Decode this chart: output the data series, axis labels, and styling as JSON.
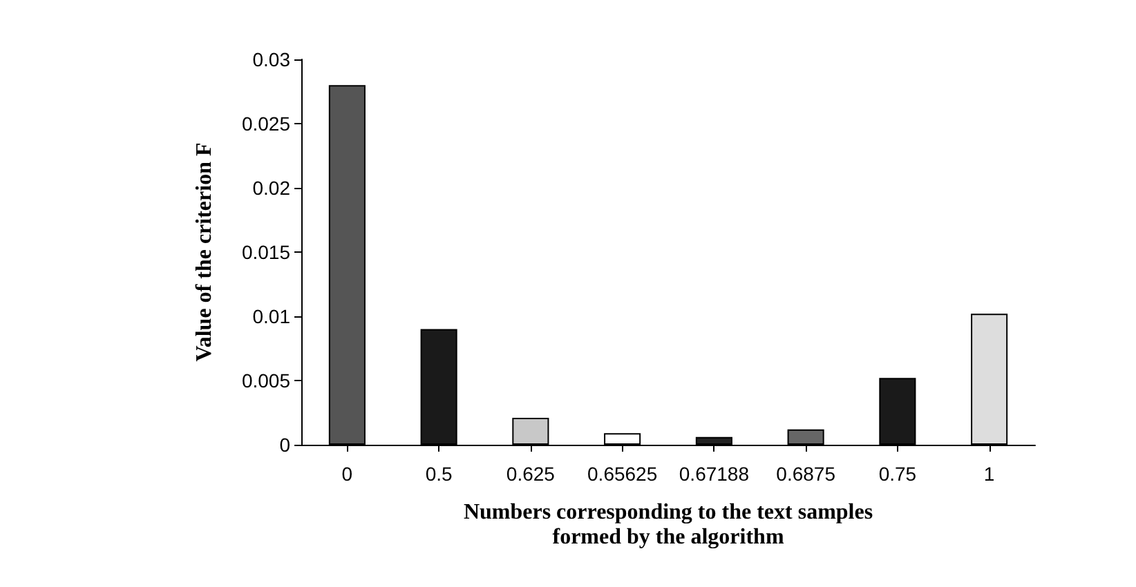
{
  "chart_data": {
    "type": "bar",
    "categories": [
      "0",
      "0.5",
      "0.625",
      "0.65625",
      "0.67188",
      "0.6875",
      "0.75",
      "1"
    ],
    "values": [
      0.028,
      0.009,
      0.0021,
      0.0009,
      0.0006,
      0.0012,
      0.0052,
      0.0102
    ],
    "colors": [
      "#555555",
      "#1a1a1a",
      "#c8c8c8",
      "#ffffff",
      "#222222",
      "#666666",
      "#1a1a1a",
      "#dddddd"
    ],
    "xlabel": "Numbers corresponding to the text samples\nformed by the algorithm",
    "ylabel": "Value of the criterion F",
    "ylim": [
      0,
      0.03
    ],
    "yticks": [
      0,
      0.005,
      0.01,
      0.015,
      0.02,
      0.025,
      0.03
    ],
    "grid": false
  }
}
